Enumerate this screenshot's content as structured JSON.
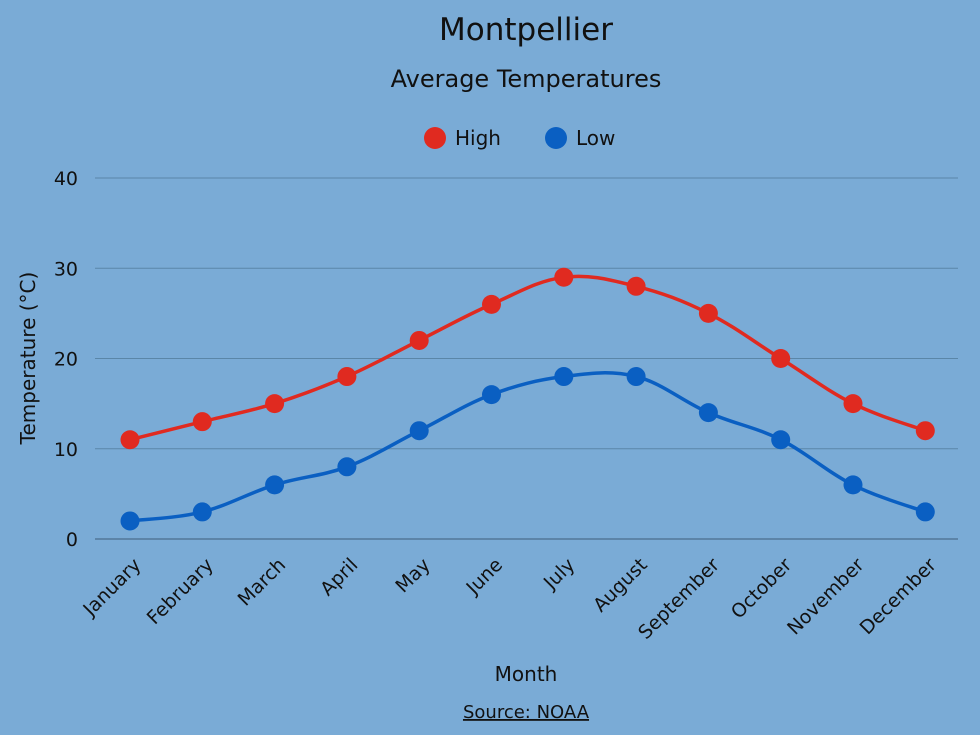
{
  "chart_data": {
    "type": "line",
    "title": "Montpellier",
    "subtitle": "Average Temperatures",
    "xlabel": "Month",
    "ylabel": "Temperature (°C)",
    "source": "Source: NOAA",
    "categories": [
      "January",
      "February",
      "March",
      "April",
      "May",
      "June",
      "July",
      "August",
      "September",
      "October",
      "November",
      "December"
    ],
    "series": [
      {
        "name": "High",
        "color": "#e02a20",
        "values": [
          11,
          13,
          15,
          18,
          22,
          26,
          29,
          28,
          25,
          20,
          15,
          12
        ]
      },
      {
        "name": "Low",
        "color": "#0a5fc2",
        "values": [
          2,
          3,
          6,
          8,
          12,
          16,
          18,
          18,
          14,
          11,
          6,
          3
        ]
      }
    ],
    "ylim": [
      0,
      40
    ],
    "yticks": [
      0,
      10,
      20,
      30,
      40
    ],
    "grid": true,
    "legend": "top-center"
  }
}
